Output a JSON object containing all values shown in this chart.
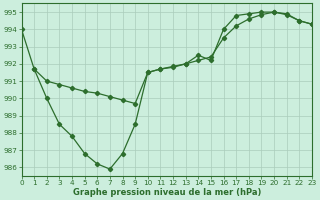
{
  "xlabel": "Graphe pression niveau de la mer (hPa)",
  "background_color": "#cceedd",
  "grid_color": "#aaccbb",
  "line_color": "#2d6e2d",
  "xlim": [
    0,
    23
  ],
  "ylim": [
    985.5,
    995.5
  ],
  "yticks": [
    986,
    987,
    988,
    989,
    990,
    991,
    992,
    993,
    994,
    995
  ],
  "xticks": [
    0,
    1,
    2,
    3,
    4,
    5,
    6,
    7,
    8,
    9,
    10,
    11,
    12,
    13,
    14,
    15,
    16,
    17,
    18,
    19,
    20,
    21,
    22,
    23
  ],
  "line1_x": [
    0,
    1,
    2,
    3,
    4,
    5,
    6,
    7,
    8,
    9,
    10,
    11,
    12,
    13,
    14,
    15,
    16,
    17,
    18,
    19,
    20,
    21,
    22,
    23
  ],
  "line1_y": [
    994.0,
    991.7,
    990.0,
    988.5,
    987.8,
    986.8,
    986.2,
    985.9,
    986.8,
    988.5,
    991.5,
    991.7,
    991.8,
    992.0,
    992.5,
    992.2,
    994.0,
    994.8,
    994.9,
    995.0,
    995.0,
    994.9,
    994.5,
    994.3
  ],
  "line2_x": [
    1,
    2,
    3,
    4,
    5,
    6,
    7,
    8,
    9,
    10,
    11,
    12,
    13,
    14,
    15,
    16,
    17,
    18,
    19,
    20,
    21,
    22,
    23
  ],
  "line2_y": [
    991.7,
    991.0,
    990.8,
    990.6,
    990.4,
    990.3,
    990.1,
    989.9,
    989.7,
    991.5,
    991.7,
    991.85,
    992.0,
    992.2,
    992.4,
    993.5,
    994.2,
    994.6,
    994.85,
    995.0,
    994.85,
    994.5,
    994.3
  ]
}
